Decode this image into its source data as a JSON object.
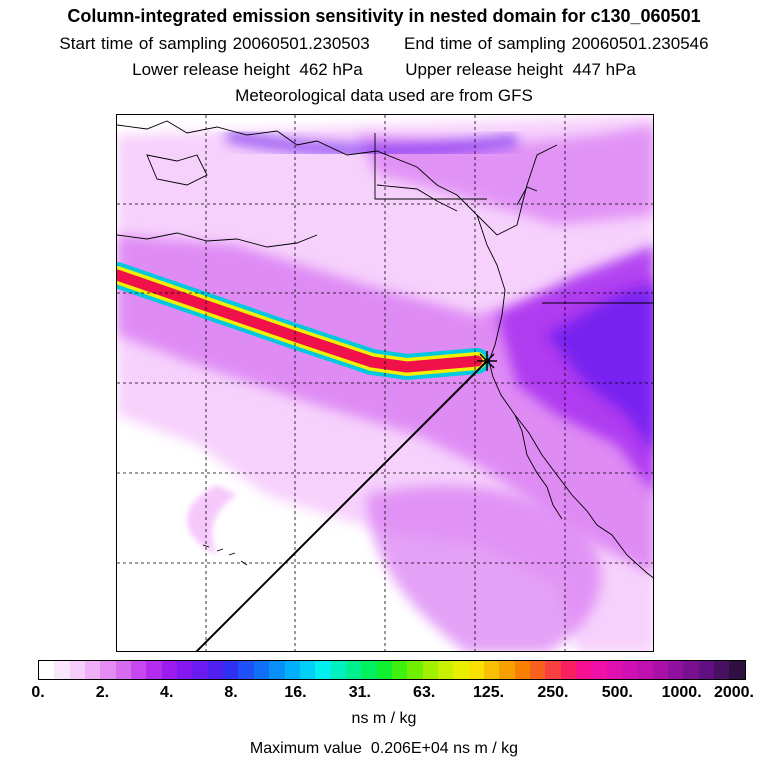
{
  "header": {
    "title": "Column-integrated emission sensitivity in nested domain for c130_060501",
    "start_label": "Start time of sampling",
    "start_value": "20060501.230503",
    "end_label": "End time of sampling",
    "end_value": "20060501.230546",
    "lower_label": "Lower release height",
    "lower_value": "462 hPa",
    "upper_label": "Upper release height",
    "upper_value": "447 hPa",
    "met_note": "Meteorological data used are from GFS"
  },
  "colorbar": {
    "tick_labels": [
      "0.",
      "2.",
      "4.",
      "8.",
      "16.",
      "31.",
      "63.",
      "125.",
      "250.",
      "500.",
      "1000.",
      "2000."
    ],
    "colors": [
      "#ffffff",
      "#fbe7fd",
      "#f6cdfb",
      "#f0b0f8",
      "#e48cf4",
      "#d86cf0",
      "#c847ee",
      "#b42cf0",
      "#9c1cf0",
      "#8418f0",
      "#6a1cf0",
      "#5020f0",
      "#3030f4",
      "#2050f8",
      "#1070f8",
      "#0890f8",
      "#00b0f8",
      "#00d0f8",
      "#00f0f0",
      "#00f0c0",
      "#00f090",
      "#00f060",
      "#10f030",
      "#40f010",
      "#70f000",
      "#a0f000",
      "#c8f000",
      "#e8f000",
      "#f8e000",
      "#f8c000",
      "#f8a000",
      "#f88000",
      "#f86020",
      "#f84040",
      "#f82060",
      "#f81090",
      "#f010a8",
      "#e010b0",
      "#d010b4",
      "#c010b0",
      "#a810a8",
      "#9010a0",
      "#781090",
      "#601080",
      "#481060",
      "#301040"
    ],
    "units": "ns m / kg",
    "max_label": "Maximum value",
    "max_value": "0.206E+04",
    "max_units": "ns m / kg"
  },
  "map": {
    "track_colors": {
      "band": "#f0104a",
      "mid": "#f0f000",
      "edge": "#00c8e0"
    },
    "plume_colors": {
      "light": "#f4c2fb",
      "medium": "#d97af3",
      "strong": "#a82ef0",
      "deep": "#6a1cf0"
    }
  }
}
